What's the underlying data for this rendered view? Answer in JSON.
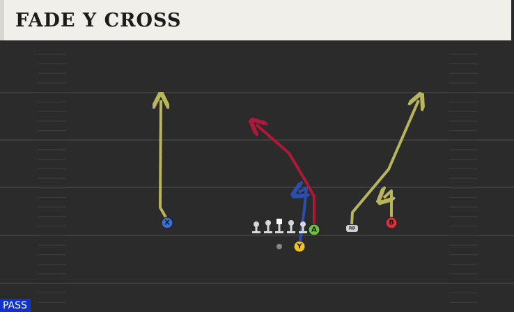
{
  "header": {
    "title": "FADE Y CROSS"
  },
  "players": [
    {
      "label": "X"
    },
    {
      "label": "A"
    },
    {
      "label": "Y"
    },
    {
      "label": "B"
    },
    {
      "label": "RB"
    }
  ],
  "play_type": "PASS"
}
